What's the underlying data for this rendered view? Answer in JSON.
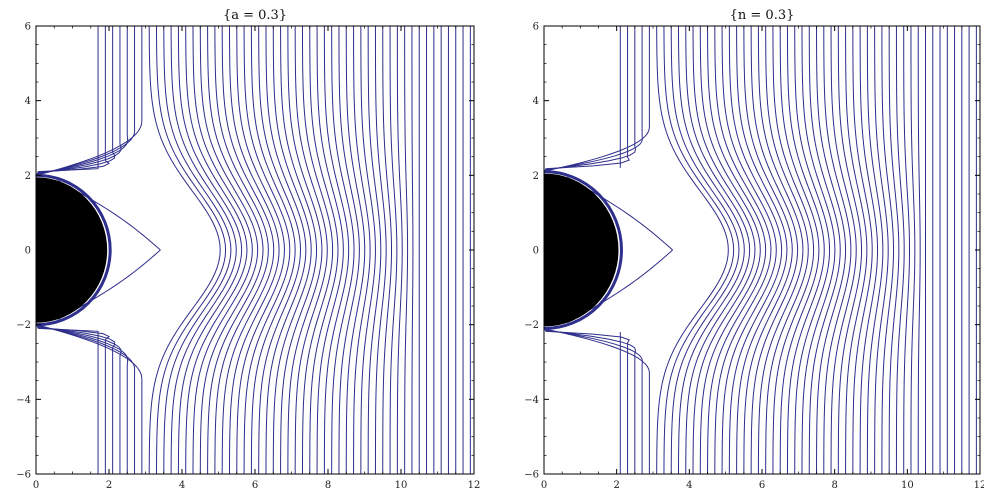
{
  "colors": {
    "field_line": "#2e2e8c",
    "black_hole": "#000000",
    "frame": "#000000",
    "background": "#ffffff"
  },
  "chart_data": [
    {
      "type": "line",
      "title": "{a = 0.3}",
      "xlabel": "",
      "ylabel": "",
      "xlim": [
        0,
        12
      ],
      "ylim": [
        -6,
        6
      ],
      "x_ticks": [
        0,
        2,
        4,
        6,
        8,
        10,
        12
      ],
      "x_tick_labels": [
        "0",
        "2",
        "4",
        "6",
        "8",
        "10",
        "12"
      ],
      "y_ticks": [
        -6,
        -4,
        -2,
        0,
        2,
        4,
        6
      ],
      "y_tick_labels": [
        "−6",
        "−4",
        "−2",
        "0",
        "2",
        "4",
        "6"
      ],
      "grid": false,
      "horizon_radius": 1.95,
      "critical_point_x": 2.9,
      "far_field_line_x": [
        1.7,
        1.9,
        2.1,
        2.3,
        2.5,
        2.7,
        2.9,
        3.1,
        3.3,
        3.5,
        3.7,
        3.9,
        4.1,
        4.3,
        4.5,
        4.7,
        4.9,
        5.1,
        5.3,
        5.5,
        5.7,
        5.9,
        6.1,
        6.3,
        6.5,
        6.7,
        6.9,
        7.1,
        7.3,
        7.5,
        7.7,
        7.9,
        8.1,
        8.3,
        8.5,
        8.7,
        8.9,
        9.1,
        9.3,
        9.5,
        9.7,
        9.9,
        10.1,
        10.3,
        10.5,
        10.7,
        10.9,
        11.1,
        11.3,
        11.5,
        11.7,
        11.9
      ]
    },
    {
      "type": "line",
      "title": "{n = 0.3}",
      "xlabel": "",
      "ylabel": "",
      "xlim": [
        0,
        12
      ],
      "ylim": [
        -6,
        6
      ],
      "x_ticks": [
        0,
        2,
        4,
        6,
        8,
        10,
        12
      ],
      "x_tick_labels": [
        "0",
        "2",
        "4",
        "6",
        "8",
        "10",
        "12"
      ],
      "y_ticks": [
        -6,
        -4,
        -2,
        0,
        2,
        4,
        6
      ],
      "y_tick_labels": [
        "−6",
        "−4",
        "−2",
        "0",
        "2",
        "4",
        "6"
      ],
      "grid": false,
      "horizon_radius": 2.05,
      "critical_point_x": 3.0,
      "far_field_line_x": [
        2.1,
        2.3,
        2.5,
        2.7,
        2.9,
        3.1,
        3.3,
        3.5,
        3.7,
        3.9,
        4.1,
        4.3,
        4.5,
        4.7,
        4.9,
        5.1,
        5.3,
        5.5,
        5.7,
        5.9,
        6.1,
        6.3,
        6.5,
        6.7,
        6.9,
        7.1,
        7.3,
        7.5,
        7.7,
        7.9,
        8.1,
        8.3,
        8.5,
        8.7,
        8.9,
        9.1,
        9.3,
        9.5,
        9.7,
        9.9,
        10.1,
        10.3,
        10.5,
        10.7,
        10.9,
        11.1,
        11.3,
        11.5,
        11.7,
        11.9
      ]
    }
  ]
}
